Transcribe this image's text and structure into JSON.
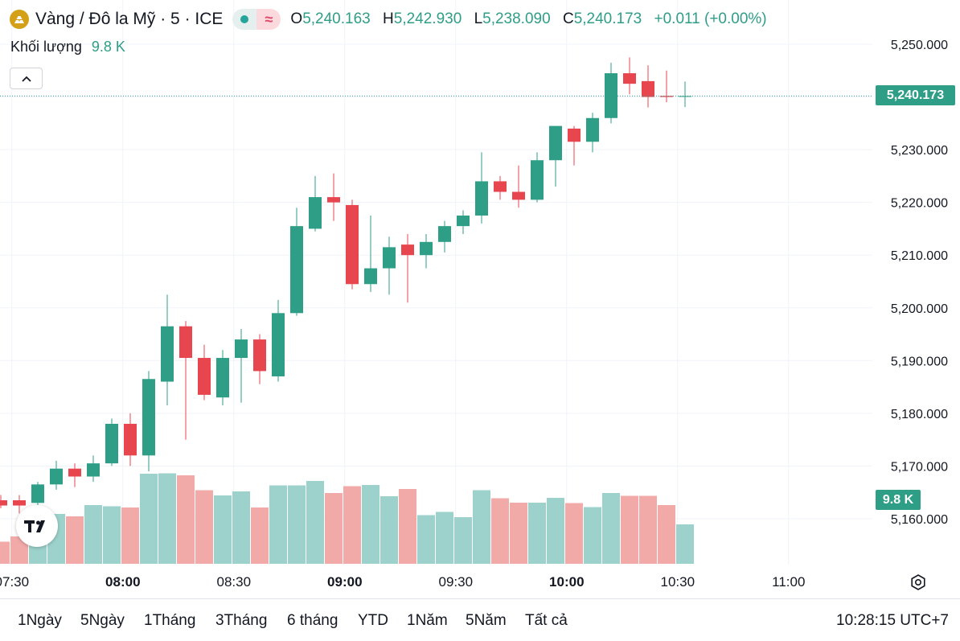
{
  "header": {
    "symbol_title": "Vàng / Đô la Mỹ · 5 · ICE",
    "symbol_icon": "gold-bars-icon",
    "status_icon": "market-open-dot-icon",
    "status_symbol": "≈",
    "ohlc": {
      "open_label": "O",
      "open_value": "5,240.163",
      "high_label": "H",
      "high_value": "5,242.930",
      "low_label": "L",
      "low_value": "5,238.090",
      "close_label": "C",
      "close_value": "5,240.173",
      "change": "+0.011 (+0.00%)"
    },
    "volume_label": "Khối lượng",
    "volume_value": "9.8 K"
  },
  "colors": {
    "up": "#2f9e87",
    "down": "#e8464f",
    "vol_up": "#9dd2cc",
    "vol_down": "#f2aaa9",
    "grid": "#f0f3fa",
    "text": "#131722"
  },
  "price_badge": "5,240.173",
  "volume_badge": "9.8 K",
  "chart_data": {
    "type": "candlestick",
    "title": "Vàng / Đô la Mỹ · 5 · ICE",
    "interval": "5",
    "y_axis": {
      "ylim": [
        5150,
        5253
      ],
      "ticks": [
        5160,
        5170,
        5180,
        5190,
        5200,
        5210,
        5220,
        5230,
        5240,
        5250
      ],
      "tick_labels": [
        "5,160.000",
        "5,170.000",
        "5,180.000",
        "5,190.000",
        "5,200.000",
        "5,210.000",
        "5,220.000",
        "5,230.000",
        "5,240.000",
        "5,250.000"
      ]
    },
    "x_axis": {
      "labels": [
        "07:30",
        "08:00",
        "08:30",
        "09:00",
        "09:30",
        "10:00",
        "10:30",
        "11:00"
      ],
      "bold": [
        false,
        true,
        false,
        true,
        false,
        true,
        false,
        false
      ],
      "label_bar_index": [
        0.6,
        6.6,
        12.6,
        18.6,
        24.6,
        30.6,
        36.6,
        42.6
      ]
    },
    "last_price": 5240.173,
    "volume_scale_max": 40,
    "candles": [
      {
        "o": 5163.5,
        "h": 5164.5,
        "l": 5162.0,
        "c": 5162.5,
        "v": 5.5
      },
      {
        "o": 5163.5,
        "h": 5164.5,
        "l": 5161.0,
        "c": 5162.5,
        "v": 6.8
      },
      {
        "o": 5163.0,
        "h": 5167.0,
        "l": 5162.5,
        "c": 5166.5,
        "v": 11.7
      },
      {
        "o": 5166.5,
        "h": 5171.0,
        "l": 5165.5,
        "c": 5169.5,
        "v": 12.4
      },
      {
        "o": 5169.5,
        "h": 5170.5,
        "l": 5166.0,
        "c": 5168.0,
        "v": 11.8
      },
      {
        "o": 5168.0,
        "h": 5172.0,
        "l": 5167.0,
        "c": 5170.5,
        "v": 14.6
      },
      {
        "o": 5170.5,
        "h": 5179.0,
        "l": 5170.0,
        "c": 5178.0,
        "v": 14.3
      },
      {
        "o": 5178.0,
        "h": 5180.0,
        "l": 5170.0,
        "c": 5172.0,
        "v": 14.0
      },
      {
        "o": 5172.0,
        "h": 5188.0,
        "l": 5169.0,
        "c": 5186.5,
        "v": 22.4
      },
      {
        "o": 5186.0,
        "h": 5202.5,
        "l": 5181.5,
        "c": 5196.5,
        "v": 22.5
      },
      {
        "o": 5196.5,
        "h": 5197.5,
        "l": 5175.0,
        "c": 5190.5,
        "v": 22.0
      },
      {
        "o": 5190.5,
        "h": 5193.0,
        "l": 5182.5,
        "c": 5183.5,
        "v": 18.3
      },
      {
        "o": 5183.0,
        "h": 5192.0,
        "l": 5181.5,
        "c": 5190.5,
        "v": 17.0
      },
      {
        "o": 5190.5,
        "h": 5196.0,
        "l": 5182.0,
        "c": 5194.0,
        "v": 18.0
      },
      {
        "o": 5194.0,
        "h": 5195.0,
        "l": 5185.5,
        "c": 5188.0,
        "v": 14.0
      },
      {
        "o": 5187.0,
        "h": 5201.5,
        "l": 5186.0,
        "c": 5199.0,
        "v": 19.5
      },
      {
        "o": 5199.0,
        "h": 5219.0,
        "l": 5198.5,
        "c": 5215.5,
        "v": 19.5
      },
      {
        "o": 5215.0,
        "h": 5225.0,
        "l": 5214.5,
        "c": 5221.0,
        "v": 20.6
      },
      {
        "o": 5221.0,
        "h": 5225.5,
        "l": 5216.5,
        "c": 5220.0,
        "v": 17.6
      },
      {
        "o": 5219.5,
        "h": 5220.5,
        "l": 5203.5,
        "c": 5204.5,
        "v": 19.3
      },
      {
        "o": 5204.5,
        "h": 5217.5,
        "l": 5203.0,
        "c": 5207.5,
        "v": 19.6
      },
      {
        "o": 5207.5,
        "h": 5213.5,
        "l": 5202.5,
        "c": 5211.5,
        "v": 16.8
      },
      {
        "o": 5212.0,
        "h": 5214.0,
        "l": 5201.0,
        "c": 5210.0,
        "v": 18.6
      },
      {
        "o": 5210.0,
        "h": 5214.0,
        "l": 5207.5,
        "c": 5212.5,
        "v": 12.1
      },
      {
        "o": 5212.5,
        "h": 5216.5,
        "l": 5210.5,
        "c": 5215.5,
        "v": 12.9
      },
      {
        "o": 5215.5,
        "h": 5218.5,
        "l": 5214.0,
        "c": 5217.5,
        "v": 11.6
      },
      {
        "o": 5217.5,
        "h": 5229.5,
        "l": 5216.0,
        "c": 5224.0,
        "v": 18.3
      },
      {
        "o": 5224.0,
        "h": 5225.0,
        "l": 5220.5,
        "c": 5222.0,
        "v": 16.3
      },
      {
        "o": 5222.0,
        "h": 5227.0,
        "l": 5219.0,
        "c": 5220.5,
        "v": 15.2
      },
      {
        "o": 5220.5,
        "h": 5229.5,
        "l": 5220.0,
        "c": 5228.0,
        "v": 15.2
      },
      {
        "o": 5228.0,
        "h": 5234.5,
        "l": 5223.0,
        "c": 5234.5,
        "v": 16.4
      },
      {
        "o": 5234.0,
        "h": 5234.5,
        "l": 5227.0,
        "c": 5231.5,
        "v": 15.1
      },
      {
        "o": 5231.5,
        "h": 5237.0,
        "l": 5229.5,
        "c": 5236.0,
        "v": 14.1
      },
      {
        "o": 5236.0,
        "h": 5246.5,
        "l": 5235.0,
        "c": 5244.5,
        "v": 17.6
      },
      {
        "o": 5244.5,
        "h": 5247.5,
        "l": 5240.5,
        "c": 5242.5,
        "v": 16.9
      },
      {
        "o": 5243.0,
        "h": 5246.0,
        "l": 5238.0,
        "c": 5240.0,
        "v": 16.9
      },
      {
        "o": 5240.2,
        "h": 5245.0,
        "l": 5239.0,
        "c": 5240.0,
        "v": 14.6
      },
      {
        "o": 5240.163,
        "h": 5242.93,
        "l": 5238.09,
        "c": 5240.173,
        "v": 9.8
      }
    ]
  },
  "ranges": [
    "1Ngày",
    "5Ngày",
    "1Tháng",
    "3Tháng",
    "6 tháng",
    "YTD",
    "1Năm",
    "5Năm",
    "Tất cả"
  ],
  "clock": "10:28:15 UTC+7"
}
